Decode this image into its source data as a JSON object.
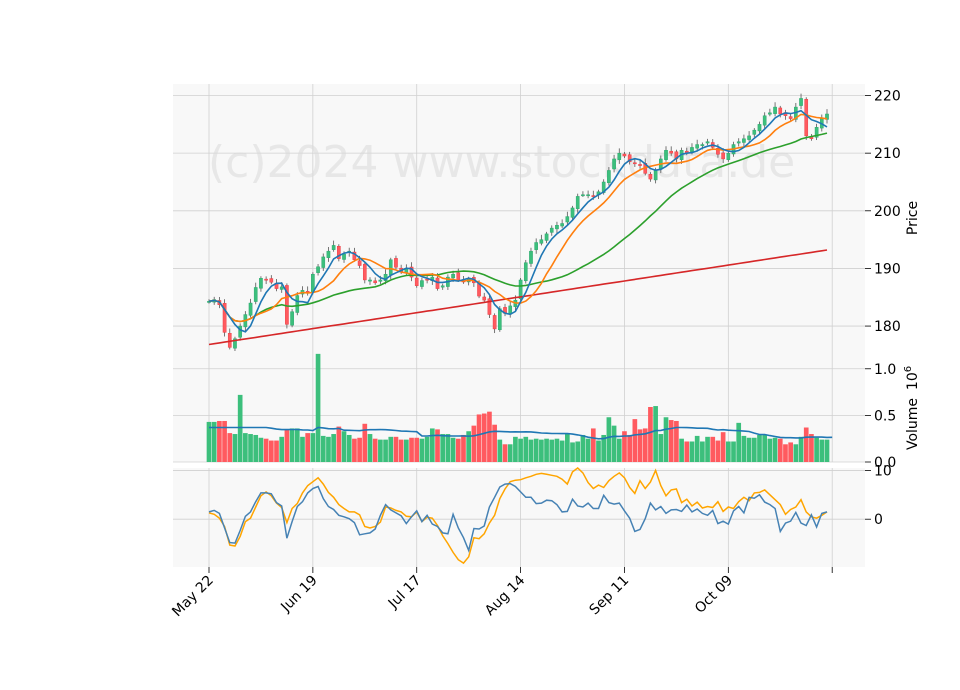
{
  "watermark": "(c)2024 www.stockdata.de",
  "chart_data": {
    "type": "candlestick",
    "panels": [
      "price",
      "volume",
      "oscillator"
    ],
    "x_ticks": [
      {
        "label": "May 22",
        "index": 0
      },
      {
        "label": "Jun 19",
        "index": 20
      },
      {
        "label": "Jul 17",
        "index": 40
      },
      {
        "label": "Aug 14",
        "index": 60
      },
      {
        "label": "Sep 11",
        "index": 80
      },
      {
        "label": "Oct 09",
        "index": 100
      },
      {
        "label": "",
        "index": 120
      }
    ],
    "price_axis": {
      "label": "Price",
      "ticks": [
        180,
        190,
        200,
        210,
        220
      ],
      "ylim": [
        175.5,
        222
      ]
    },
    "volume_axis": {
      "label": "Volume",
      "exponent_label": "10^6",
      "ticks": [
        "0.0",
        "0.5",
        "1.0"
      ],
      "ylim": [
        0,
        1.18
      ]
    },
    "osc_axis": {
      "ticks": [
        0,
        10
      ],
      "ylim": [
        -9.8,
        10.5
      ]
    },
    "colors": {
      "up": "#26a269",
      "down": "#e8333a",
      "up_fill": "#3cbf7c",
      "down_fill": "#ff5a5f",
      "ma_short": "#1f77b4",
      "ma_mid": "#ff7f0e",
      "ma_long": "#2ca02c",
      "ma_longest": "#d62728",
      "vol_ma": "#1f77b4",
      "osc_line": "#4682b4",
      "osc_signal": "#ffa500"
    },
    "closes": [
      184.3,
      184.6,
      183.7,
      178.9,
      176.3,
      177.8,
      180.0,
      182.0,
      184.0,
      186.7,
      188.3,
      188.0,
      187.6,
      186.5,
      186.8,
      180.3,
      182.5,
      185.3,
      186.2,
      186.0,
      189.0,
      190.3,
      192.0,
      193.0,
      194.0,
      191.7,
      192.5,
      193.0,
      191.5,
      190.5,
      188.0,
      188.0,
      187.5,
      188.0,
      189.0,
      191.5,
      190.2,
      189.5,
      190.0,
      188.5,
      187.0,
      187.9,
      188.0,
      188.5,
      186.5,
      187.0,
      188.5,
      189.0,
      188.0,
      187.8,
      188.2,
      187.5,
      185.2,
      184.5,
      182.0,
      179.5,
      183.0,
      182.2,
      183.5,
      184.5,
      188.0,
      191.0,
      193.0,
      194.5,
      195.0,
      196.0,
      197.0,
      197.5,
      197.8,
      199.0,
      200.5,
      202.5,
      202.8,
      202.8,
      202.5,
      203.3,
      205.0,
      207.0,
      209.0,
      210.0,
      209.5,
      208.5,
      208.2,
      208.0,
      206.5,
      205.5,
      207.0,
      209.0,
      210.5,
      210.0,
      209.0,
      210.5,
      210.0,
      211.0,
      211.5,
      211.5,
      212.0,
      211.0,
      209.8,
      209.0,
      210.0,
      211.5,
      212.0,
      212.5,
      213.0,
      214.0,
      215.0,
      216.5,
      217.0,
      218.0,
      216.8,
      216.5,
      216.0,
      218.0,
      219.5,
      213.0,
      212.5,
      214.5,
      216.0,
      216.8
    ],
    "volumes": [
      0.43,
      0.43,
      0.44,
      0.44,
      0.31,
      0.3,
      0.72,
      0.31,
      0.3,
      0.29,
      0.26,
      0.25,
      0.23,
      0.23,
      0.27,
      0.35,
      0.36,
      0.36,
      0.27,
      0.31,
      0.31,
      1.16,
      0.28,
      0.27,
      0.3,
      0.38,
      0.33,
      0.29,
      0.25,
      0.26,
      0.41,
      0.3,
      0.25,
      0.24,
      0.24,
      0.27,
      0.27,
      0.24,
      0.24,
      0.26,
      0.26,
      0.25,
      0.27,
      0.36,
      0.35,
      0.3,
      0.3,
      0.26,
      0.25,
      0.29,
      0.33,
      0.39,
      0.51,
      0.52,
      0.54,
      0.4,
      0.24,
      0.19,
      0.19,
      0.27,
      0.25,
      0.27,
      0.24,
      0.25,
      0.24,
      0.25,
      0.24,
      0.25,
      0.23,
      0.31,
      0.21,
      0.22,
      0.29,
      0.25,
      0.36,
      0.23,
      0.29,
      0.48,
      0.39,
      0.25,
      0.33,
      0.29,
      0.46,
      0.35,
      0.36,
      0.59,
      0.6,
      0.3,
      0.48,
      0.45,
      0.44,
      0.25,
      0.22,
      0.22,
      0.28,
      0.22,
      0.27,
      0.27,
      0.23,
      0.32,
      0.22,
      0.22,
      0.42,
      0.28,
      0.26,
      0.26,
      0.29,
      0.29,
      0.25,
      0.26,
      0.25,
      0.19,
      0.21,
      0.19,
      0.27,
      0.37,
      0.3,
      0.26,
      0.24,
      0.24,
      0.26
    ],
    "osc_line": [
      1.5,
      1.8,
      1.2,
      -1.8,
      -4.8,
      -4.9,
      -2.3,
      0.6,
      1.5,
      3.6,
      5.4,
      5.4,
      5.2,
      3.4,
      2.7,
      -3.9,
      -0.5,
      2.6,
      3.6,
      5.4,
      6.3,
      6.7,
      4.2,
      2.6,
      2.0,
      0.8,
      0.5,
      0.1,
      -0.7,
      -3.2,
      -3.0,
      -2.8,
      -2.0,
      0.8,
      3.0,
      1.9,
      1.3,
      0.7,
      -0.9,
      0.5,
      1.7,
      -0.5,
      0.8,
      -1.0,
      -1.5,
      -2.8,
      -3.0,
      1.0,
      -1.8,
      -3.8,
      -6.4,
      -1.9,
      -2.0,
      -1.4,
      2.5,
      4.5,
      6.6,
      7.2,
      7.3,
      6.7,
      5.6,
      4.5,
      4.5,
      3.2,
      3.3,
      3.9,
      3.8,
      3.0,
      1.5,
      1.6,
      4.1,
      2.7,
      2.5,
      3.3,
      2.2,
      2.2,
      4.9,
      3.4,
      3.1,
      3.3,
      1.7,
      0.2,
      -2.5,
      -2.1,
      0.1,
      3.3,
      1.9,
      2.6,
      1.2,
      1.9,
      2.0,
      1.6,
      2.9,
      1.5,
      2.1,
      1.2,
      0.8,
      1.8,
      -0.9,
      -0.4,
      -1.0,
      1.7,
      2.6,
      1.3,
      4.5,
      4.3,
      5.0,
      3.5,
      3.0,
      2.2,
      -2.5,
      -0.8,
      -0.4,
      1.4,
      -0.8,
      -1.3,
      0.9,
      -1.6,
      1.2,
      1.5
    ],
    "osc_signal": [
      1.3,
      1.0,
      0.2,
      -1.5,
      -5.3,
      -5.5,
      -3.5,
      -0.5,
      0.2,
      2.5,
      4.8,
      5.6,
      4.8,
      3.3,
      2.4,
      -0.7,
      2.2,
      3.2,
      5.4,
      6.9,
      7.7,
      8.5,
      7.2,
      5.5,
      4.5,
      3.0,
      2.2,
      1.5,
      1.5,
      0.9,
      -1.5,
      -1.8,
      -1.5,
      -0.6,
      2.5,
      2.3,
      1.8,
      1.5,
      0.6,
      0.5,
      1.5,
      -0.5,
      0.4,
      0.2,
      -1.3,
      -3.4,
      -5.0,
      -6.8,
      -8.3,
      -9.0,
      -7.7,
      -3.8,
      -4.0,
      -3.0,
      -0.8,
      0.8,
      4.2,
      6.2,
      7.7,
      8.0,
      8.1,
      8.5,
      8.8,
      9.2,
      9.4,
      9.2,
      9.0,
      8.8,
      8.2,
      7.2,
      9.7,
      10.5,
      9.5,
      7.5,
      6.3,
      7.0,
      6.5,
      7.9,
      8.8,
      9.5,
      8.5,
      6.5,
      5.3,
      7.9,
      6.3,
      7.6,
      10.0,
      6.9,
      4.8,
      6.0,
      6.2,
      3.4,
      4.1,
      2.7,
      3.5,
      2.3,
      2.6,
      2.4,
      3.6,
      1.6,
      2.5,
      2.2,
      3.6,
      4.5,
      3.8,
      5.4,
      5.5,
      6.0,
      5.0,
      4.0,
      3.0,
      1.0,
      2.0,
      2.5,
      4.0,
      1.5,
      0.5,
      0.2,
      0.8,
      1.5
    ]
  }
}
